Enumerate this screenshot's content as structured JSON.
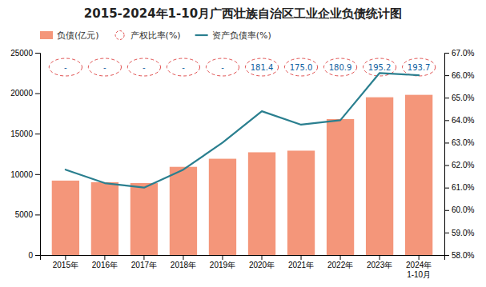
{
  "chart_data": {
    "type": "combo",
    "title": "2015-2024年1-10月广西壮族自治区工业企业负债统计图",
    "categories": [
      "2015年",
      "2016年",
      "2017年",
      "2018年",
      "2019年",
      "2020年",
      "2021年",
      "2022年",
      "2023年",
      "2024年\n1-10月"
    ],
    "series": [
      {
        "name": "负债(亿元)",
        "type": "bar",
        "color": "#F4967A",
        "values": [
          9200,
          9000,
          8900,
          10900,
          11900,
          12700,
          12900,
          16800,
          19500,
          19800
        ]
      },
      {
        "name": "产权比率(%)",
        "type": "label",
        "color": "#E05050",
        "line_style": "dashed",
        "data_labels": true,
        "values": [
          null,
          null,
          null,
          null,
          null,
          181.4,
          175.0,
          180.9,
          195.2,
          193.7
        ],
        "value_labels": [
          "-",
          "-",
          "-",
          "-",
          "-",
          "181.4",
          "175.0",
          "180.9",
          "195.2",
          "193.7"
        ]
      },
      {
        "name": "资产负债率(%)",
        "type": "line",
        "axis": "y2",
        "color": "#2A7F8F",
        "values": [
          61.8,
          61.2,
          61.0,
          61.8,
          63.0,
          64.4,
          63.8,
          64.0,
          66.1,
          66.0
        ]
      }
    ],
    "ylim": [
      0,
      25000
    ],
    "yticks": [
      0,
      5000,
      10000,
      15000,
      20000,
      25000
    ],
    "y2lim": [
      58.0,
      67.0
    ],
    "y2ticks": [
      {
        "value": 58.0,
        "label": "58.0%"
      },
      {
        "value": 59.0,
        "label": "59.0%"
      },
      {
        "value": 60.0,
        "label": "60.0%"
      },
      {
        "value": 61.0,
        "label": "61.0%"
      },
      {
        "value": 62.0,
        "label": "62.0%"
      },
      {
        "value": 63.0,
        "label": "63.0%"
      },
      {
        "value": 64.0,
        "label": "64.0%"
      },
      {
        "value": 65.0,
        "label": "65.0%"
      },
      {
        "value": 66.0,
        "label": "66.0%"
      },
      {
        "value": 67.0,
        "label": "67.0%"
      }
    ],
    "grid": false,
    "legend": "top-left"
  }
}
